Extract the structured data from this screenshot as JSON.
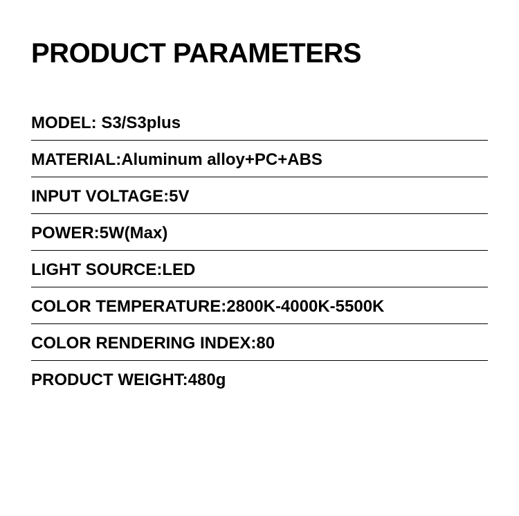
{
  "title": "PRODUCT PARAMETERS",
  "parameters": [
    {
      "label": "MODEL: ",
      "value": "S3/S3plus"
    },
    {
      "label": "MATERIAL:",
      "value": "Aluminum alloy+PC+ABS"
    },
    {
      "label": "INPUT VOLTAGE:",
      "value": "5V"
    },
    {
      "label": "POWER:",
      "value": "5W(Max)"
    },
    {
      "label": "LIGHT SOURCE:",
      "value": "LED"
    },
    {
      "label": "COLOR TEMPERATURE:",
      "value": "2800K-4000K-5500K"
    },
    {
      "label": "COLOR RENDERING INDEX:",
      "value": "80"
    },
    {
      "label": "PRODUCT WEIGHT:",
      "value": "480g"
    }
  ],
  "styling": {
    "background_color": "#ffffff",
    "text_color": "#000000",
    "divider_color": "#000000",
    "title_fontsize": 40,
    "param_fontsize": 24,
    "title_weight": 900,
    "param_weight": 700
  }
}
